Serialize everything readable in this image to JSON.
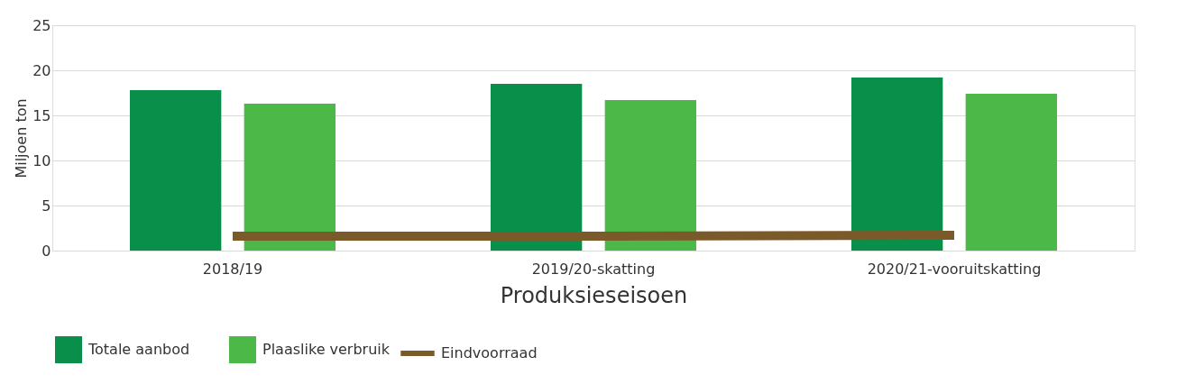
{
  "chart_data": {
    "type": "bar",
    "xlabel": "Produksieseisoen",
    "ylabel": "Miljoen ton",
    "categories": [
      "2018/19",
      "2019/20-skatting",
      "2020/21-vooruitskatting"
    ],
    "series": [
      {
        "name": "Totale aanbod",
        "color": "#0a8f4a",
        "values": [
          17.8,
          18.5,
          19.2
        ]
      },
      {
        "name": "Plaaslike verbruik",
        "color": "#4cb848",
        "values": [
          16.3,
          16.7,
          17.4
        ]
      },
      {
        "name": "Eindvoorraad",
        "color": "#7b5a2a",
        "type": "line",
        "values": [
          1.6,
          1.6,
          1.7
        ]
      }
    ],
    "ylim": [
      0,
      25
    ],
    "yticks": [
      0,
      5,
      10,
      15,
      20,
      25
    ],
    "grid": "y",
    "legend": "bottom"
  }
}
